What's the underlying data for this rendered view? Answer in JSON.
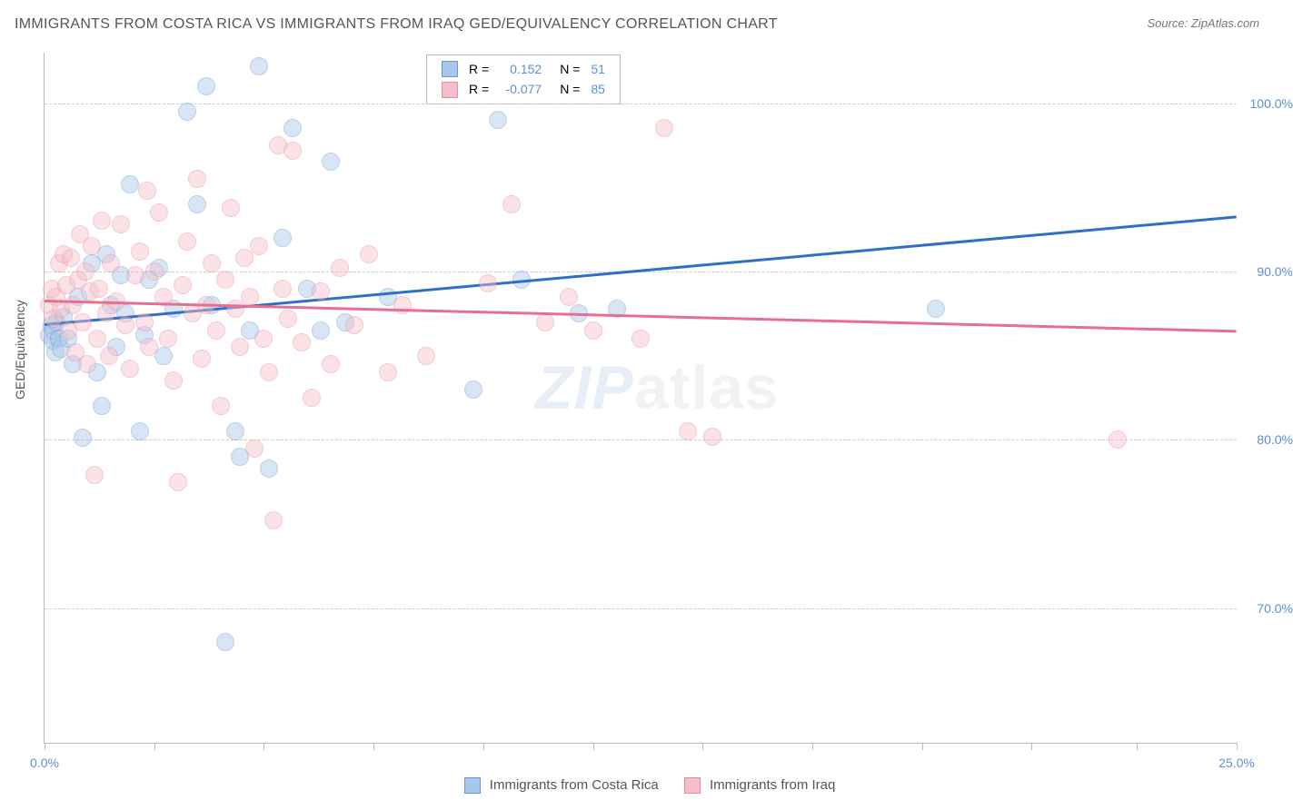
{
  "title": "IMMIGRANTS FROM COSTA RICA VS IMMIGRANTS FROM IRAQ GED/EQUIVALENCY CORRELATION CHART",
  "source": "Source: ZipAtlas.com",
  "ylabel": "GED/Equivalency",
  "watermark": {
    "zip": "ZIP",
    "atlas": "atlas"
  },
  "chart": {
    "type": "scatter",
    "background_color": "#ffffff",
    "grid_color": "#cccccc",
    "axis_color": "#bbbbbb",
    "label_color": "#5b8fd6",
    "text_color": "#555555",
    "xlim": [
      0,
      25
    ],
    "ylim": [
      62,
      103
    ],
    "xtick_labels": {
      "0": "0.0%",
      "25": "25.0%"
    },
    "xtick_positions": [
      0,
      2.3,
      4.6,
      6.9,
      9.2,
      11.5,
      13.8,
      16.1,
      18.4,
      20.7,
      22.9,
      25
    ],
    "ytick_positions": [
      70,
      80,
      90,
      100
    ],
    "ytick_labels": [
      "70.0%",
      "80.0%",
      "90.0%",
      "100.0%"
    ],
    "point_radius": 9,
    "point_opacity": 0.45,
    "line_width": 2.5,
    "series": [
      {
        "name": "Immigrants from Costa Rica",
        "color_fill": "#a8c7ea",
        "color_stroke": "#6699d8",
        "trend_color": "#2f6fc7",
        "R": "0.152",
        "N": "51",
        "trend": {
          "x0": 0,
          "y0": 86.9,
          "x1": 25,
          "y1": 93.3
        },
        "points": [
          [
            0.1,
            86.2
          ],
          [
            0.15,
            86.8
          ],
          [
            0.18,
            85.9
          ],
          [
            0.2,
            86.5
          ],
          [
            0.22,
            85.2
          ],
          [
            0.25,
            87.0
          ],
          [
            0.3,
            86.0
          ],
          [
            0.35,
            85.4
          ],
          [
            0.4,
            87.3
          ],
          [
            0.5,
            86.0
          ],
          [
            0.6,
            84.5
          ],
          [
            0.7,
            88.5
          ],
          [
            0.8,
            80.1
          ],
          [
            1.0,
            90.5
          ],
          [
            1.1,
            84.0
          ],
          [
            1.2,
            82.0
          ],
          [
            1.3,
            91.0
          ],
          [
            1.4,
            88.0
          ],
          [
            1.5,
            85.5
          ],
          [
            1.6,
            89.8
          ],
          [
            1.7,
            87.5
          ],
          [
            1.8,
            95.2
          ],
          [
            2.0,
            80.5
          ],
          [
            2.1,
            86.2
          ],
          [
            2.2,
            89.5
          ],
          [
            2.4,
            90.2
          ],
          [
            2.5,
            85.0
          ],
          [
            2.7,
            87.8
          ],
          [
            3.0,
            99.5
          ],
          [
            3.2,
            94.0
          ],
          [
            3.4,
            101.0
          ],
          [
            3.5,
            88.0
          ],
          [
            3.8,
            68.0
          ],
          [
            4.0,
            80.5
          ],
          [
            4.1,
            79.0
          ],
          [
            4.3,
            86.5
          ],
          [
            4.5,
            102.2
          ],
          [
            4.7,
            78.3
          ],
          [
            5.0,
            92.0
          ],
          [
            5.2,
            98.5
          ],
          [
            5.5,
            89.0
          ],
          [
            5.8,
            86.5
          ],
          [
            6.0,
            96.5
          ],
          [
            6.3,
            87.0
          ],
          [
            7.2,
            88.5
          ],
          [
            9.0,
            83.0
          ],
          [
            9.5,
            99.0
          ],
          [
            10.0,
            89.5
          ],
          [
            11.2,
            87.5
          ],
          [
            12.0,
            87.8
          ],
          [
            18.7,
            87.8
          ]
        ]
      },
      {
        "name": "Immigrants from Iraq",
        "color_fill": "#f4bfca",
        "color_stroke": "#e98aa0",
        "trend_color": "#e76f91",
        "R": "-0.077",
        "N": "85",
        "trend": {
          "x0": 0,
          "y0": 88.3,
          "x1": 25,
          "y1": 86.5
        },
        "points": [
          [
            0.1,
            88.0
          ],
          [
            0.15,
            89.0
          ],
          [
            0.2,
            87.2
          ],
          [
            0.25,
            88.5
          ],
          [
            0.3,
            90.5
          ],
          [
            0.35,
            87.8
          ],
          [
            0.4,
            91.0
          ],
          [
            0.45,
            89.2
          ],
          [
            0.5,
            86.5
          ],
          [
            0.55,
            90.8
          ],
          [
            0.6,
            88.0
          ],
          [
            0.65,
            85.2
          ],
          [
            0.7,
            89.5
          ],
          [
            0.75,
            92.2
          ],
          [
            0.8,
            87.0
          ],
          [
            0.85,
            90.0
          ],
          [
            0.9,
            84.5
          ],
          [
            0.95,
            88.8
          ],
          [
            1.0,
            91.5
          ],
          [
            1.1,
            86.0
          ],
          [
            1.15,
            89.0
          ],
          [
            1.2,
            93.0
          ],
          [
            1.3,
            87.5
          ],
          [
            1.35,
            85.0
          ],
          [
            1.4,
            90.5
          ],
          [
            1.5,
            88.2
          ],
          [
            1.6,
            92.8
          ],
          [
            1.7,
            86.8
          ],
          [
            1.8,
            84.2
          ],
          [
            1.9,
            89.8
          ],
          [
            2.0,
            91.2
          ],
          [
            2.1,
            87.0
          ],
          [
            2.2,
            85.5
          ],
          [
            2.3,
            90.0
          ],
          [
            2.4,
            93.5
          ],
          [
            2.5,
            88.5
          ],
          [
            2.6,
            86.0
          ],
          [
            2.7,
            83.5
          ],
          [
            2.8,
            77.5
          ],
          [
            2.9,
            89.2
          ],
          [
            3.0,
            91.8
          ],
          [
            3.1,
            87.5
          ],
          [
            3.2,
            95.5
          ],
          [
            3.3,
            84.8
          ],
          [
            3.4,
            88.0
          ],
          [
            3.5,
            90.5
          ],
          [
            3.6,
            86.5
          ],
          [
            3.7,
            82.0
          ],
          [
            3.8,
            89.5
          ],
          [
            3.9,
            93.8
          ],
          [
            4.0,
            87.8
          ],
          [
            4.1,
            85.5
          ],
          [
            4.2,
            90.8
          ],
          [
            4.3,
            88.5
          ],
          [
            4.4,
            79.5
          ],
          [
            4.5,
            91.5
          ],
          [
            4.6,
            86.0
          ],
          [
            4.7,
            84.0
          ],
          [
            4.8,
            75.2
          ],
          [
            4.9,
            97.5
          ],
          [
            5.0,
            89.0
          ],
          [
            5.1,
            87.2
          ],
          [
            5.2,
            97.2
          ],
          [
            5.4,
            85.8
          ],
          [
            5.6,
            82.5
          ],
          [
            5.8,
            88.8
          ],
          [
            6.0,
            84.5
          ],
          [
            6.2,
            90.2
          ],
          [
            6.5,
            86.8
          ],
          [
            6.8,
            91.0
          ],
          [
            7.2,
            84.0
          ],
          [
            7.5,
            88.0
          ],
          [
            8.0,
            85.0
          ],
          [
            9.3,
            89.3
          ],
          [
            9.8,
            94.0
          ],
          [
            10.5,
            87.0
          ],
          [
            11.0,
            88.5
          ],
          [
            11.5,
            86.5
          ],
          [
            12.5,
            86.0
          ],
          [
            13.0,
            98.5
          ],
          [
            13.5,
            80.5
          ],
          [
            14.0,
            80.2
          ],
          [
            22.5,
            80.0
          ],
          [
            1.05,
            77.9
          ],
          [
            2.15,
            94.8
          ]
        ]
      }
    ]
  },
  "legend_top": {
    "R_label": "R =",
    "N_label": "N ="
  },
  "legend_bottom": {
    "series1": "Immigrants from Costa Rica",
    "series2": "Immigrants from Iraq"
  }
}
